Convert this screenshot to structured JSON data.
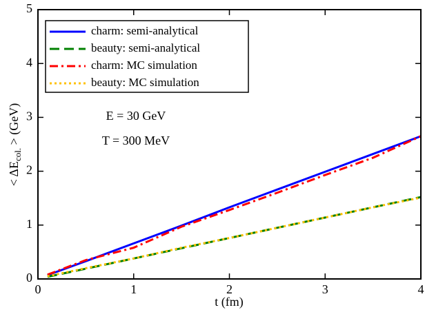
{
  "chart_data": {
    "type": "line",
    "xlabel": "t (fm)",
    "ylabel": {
      "main": "< ΔE",
      "sub": "col.",
      "tail": " > (GeV)"
    },
    "annotations": [
      "E = 30 GeV",
      "T = 300 MeV"
    ],
    "x": [
      0.1,
      0.5,
      1,
      1.5,
      2,
      2.5,
      3,
      3.5,
      4
    ],
    "series": [
      {
        "name": "charm: semi-analytical",
        "color": "#0000ff",
        "dash": "solid",
        "values": [
          0.07,
          0.33,
          0.66,
          0.99,
          1.33,
          1.66,
          1.99,
          2.32,
          2.65
        ]
      },
      {
        "name": "beauty: semi-analytical",
        "color": "#008000",
        "dash": "dashed",
        "values": [
          0.04,
          0.19,
          0.38,
          0.57,
          0.76,
          0.95,
          1.14,
          1.33,
          1.52
        ]
      },
      {
        "name": "charm: MC simulation",
        "color": "#ff0000",
        "dash": "dashdot",
        "values": [
          0.08,
          0.35,
          0.58,
          0.97,
          1.28,
          1.6,
          1.93,
          2.25,
          2.65
        ]
      },
      {
        "name": "beauty: MC simulation",
        "color": "#ffc000",
        "dash": "dotted",
        "values": [
          0.05,
          0.2,
          0.38,
          0.58,
          0.76,
          0.95,
          1.14,
          1.33,
          1.51
        ]
      }
    ],
    "xlim": [
      0,
      4
    ],
    "xticks": [
      0,
      1,
      2,
      3,
      4
    ],
    "ylim": [
      0,
      5
    ],
    "yticks": [
      0,
      1,
      2,
      3,
      4,
      5
    ],
    "grid": false,
    "legend": "upper-left"
  }
}
